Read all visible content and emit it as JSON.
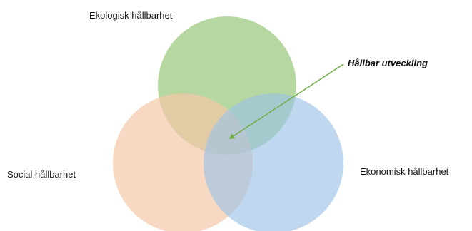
{
  "diagram": {
    "sets": [
      {
        "id": "ekologisk",
        "label": "Ekologisk hållbarhet",
        "color": "#a9d08e"
      },
      {
        "id": "social",
        "label": "Social hållbarhet",
        "color": "#f4c7a8"
      },
      {
        "id": "ekonomisk",
        "label": "Ekonomisk hållbarhet",
        "color": "#9dc3e6"
      }
    ],
    "intersection": {
      "label": "Hållbar utveckling",
      "arrow_color": "#70ad47"
    }
  }
}
